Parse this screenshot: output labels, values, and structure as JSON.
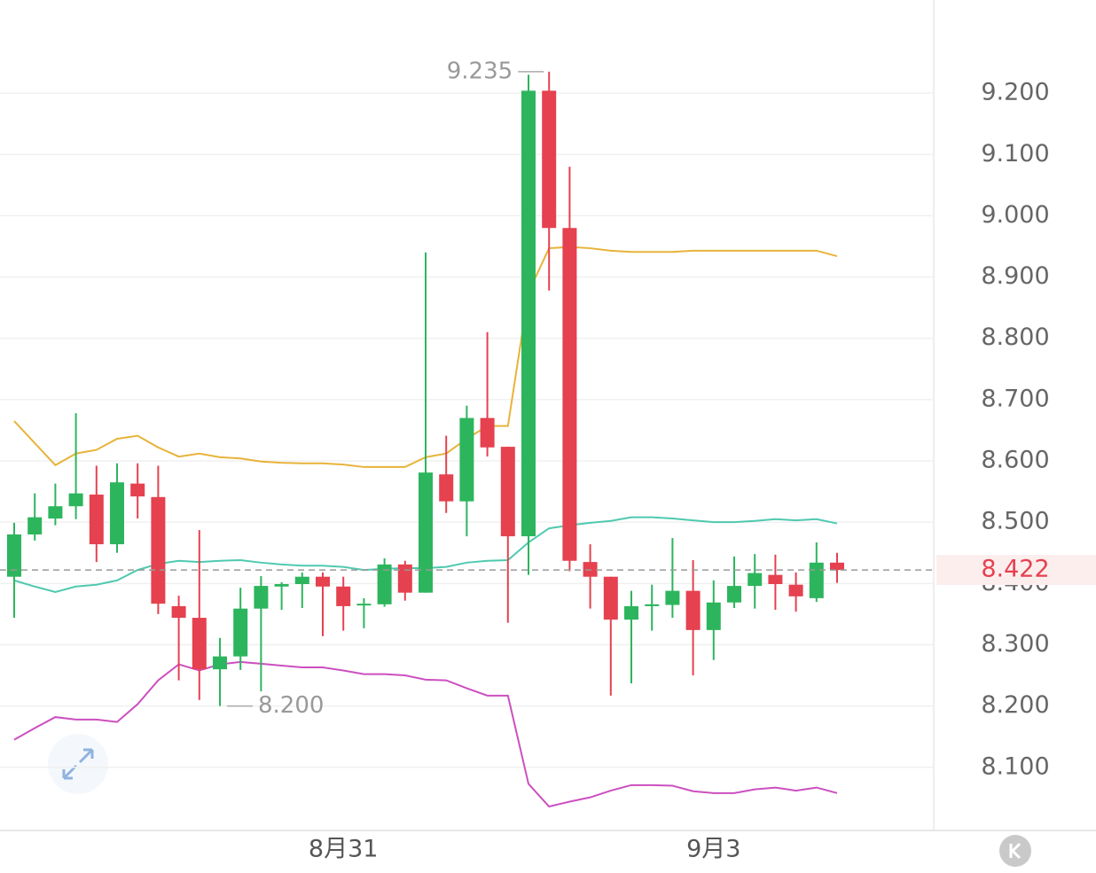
{
  "chart_data": {
    "type": "candlestick",
    "categories": [
      null,
      null,
      null,
      null,
      null,
      null,
      null,
      null,
      null,
      null,
      null,
      null,
      null,
      null,
      null,
      null,
      "8月31",
      null,
      null,
      null,
      null,
      null,
      null,
      null,
      null,
      null,
      null,
      null,
      null,
      null,
      null,
      null,
      null,
      null,
      "9月3",
      null,
      null,
      null,
      null,
      null,
      null
    ],
    "open": [
      8.411,
      8.48,
      8.506,
      8.526,
      8.545,
      8.464,
      8.563,
      8.541,
      8.363,
      8.344,
      8.26,
      8.281,
      8.359,
      8.395,
      8.399,
      8.411,
      8.395,
      8.365,
      8.366,
      8.431,
      8.385,
      8.578,
      8.534,
      8.67,
      8.623,
      8.477,
      9.204,
      8.98,
      8.435,
      8.411,
      8.341,
      8.363,
      8.365,
      8.388,
      8.324,
      8.369,
      8.396,
      8.414,
      8.398,
      8.376,
      8.434
    ],
    "high": [
      8.499,
      8.547,
      8.563,
      8.678,
      8.592,
      8.596,
      8.596,
      8.592,
      8.38,
      8.487,
      8.311,
      8.393,
      8.412,
      8.402,
      8.418,
      8.418,
      8.411,
      8.376,
      8.441,
      8.437,
      8.94,
      8.641,
      8.69,
      8.81,
      8.623,
      9.23,
      9.235,
      9.08,
      8.464,
      8.411,
      8.388,
      8.398,
      8.474,
      8.438,
      8.405,
      8.444,
      8.448,
      8.447,
      8.418,
      8.467,
      8.45
    ],
    "low": [
      8.344,
      8.47,
      8.495,
      8.505,
      8.435,
      8.45,
      8.506,
      8.35,
      8.242,
      8.21,
      8.2,
      8.259,
      8.224,
      8.357,
      8.36,
      8.314,
      8.323,
      8.327,
      8.362,
      8.372,
      8.385,
      8.515,
      8.477,
      8.607,
      8.336,
      8.414,
      8.878,
      8.42,
      8.359,
      8.217,
      8.237,
      8.323,
      8.344,
      8.25,
      8.275,
      8.36,
      8.359,
      8.357,
      8.354,
      8.37,
      8.401
    ],
    "close": [
      8.48,
      8.508,
      8.526,
      8.547,
      8.464,
      8.565,
      8.542,
      8.367,
      8.344,
      8.26,
      8.281,
      8.359,
      8.396,
      8.399,
      8.411,
      8.395,
      8.363,
      8.367,
      8.431,
      8.385,
      8.581,
      8.534,
      8.67,
      8.622,
      8.477,
      9.204,
      8.98,
      8.437,
      8.411,
      8.341,
      8.363,
      8.366,
      8.388,
      8.324,
      8.369,
      8.396,
      8.417,
      8.399,
      8.379,
      8.434,
      8.422
    ],
    "up_color": "#2db55d",
    "down_color": "#e5414f",
    "lines": [
      {
        "color": "#e8b33a",
        "values": [
          8.665,
          8.629,
          8.593,
          8.612,
          8.618,
          8.636,
          8.641,
          8.622,
          8.607,
          8.612,
          8.606,
          8.604,
          8.599,
          8.597,
          8.596,
          8.596,
          8.594,
          8.59,
          8.59,
          8.59,
          8.606,
          8.612,
          8.636,
          8.657,
          8.657,
          8.875,
          8.947,
          8.949,
          8.947,
          8.943,
          8.941,
          8.941,
          8.941,
          8.943,
          8.943,
          8.943,
          8.943,
          8.943,
          8.943,
          8.943,
          8.934
        ]
      },
      {
        "color": "#4fc9b0",
        "values": [
          8.405,
          8.395,
          8.386,
          8.395,
          8.398,
          8.405,
          8.422,
          8.432,
          8.437,
          8.435,
          8.437,
          8.438,
          8.434,
          8.431,
          8.429,
          8.429,
          8.427,
          8.422,
          8.424,
          8.425,
          8.425,
          8.427,
          8.434,
          8.437,
          8.438,
          8.467,
          8.49,
          8.495,
          8.499,
          8.502,
          8.508,
          8.508,
          8.506,
          8.503,
          8.5,
          8.5,
          8.502,
          8.505,
          8.503,
          8.505,
          8.498
        ]
      },
      {
        "color": "#cc4fc0",
        "values": [
          8.145,
          8.164,
          8.182,
          8.178,
          8.178,
          8.174,
          8.203,
          8.242,
          8.268,
          8.258,
          8.268,
          8.272,
          8.269,
          8.266,
          8.263,
          8.263,
          8.258,
          8.252,
          8.252,
          8.25,
          8.243,
          8.242,
          8.229,
          8.217,
          8.217,
          8.073,
          8.036,
          8.044,
          8.051,
          8.062,
          8.071,
          8.071,
          8.07,
          8.061,
          8.058,
          8.058,
          8.064,
          8.067,
          8.062,
          8.067,
          8.058
        ]
      }
    ],
    "ylim": [
      7.997,
      9.352
    ],
    "yticks": [
      {
        "value": 8.1,
        "label": "8.100"
      },
      {
        "value": 8.2,
        "label": "8.200"
      },
      {
        "value": 8.3,
        "label": "8.300"
      },
      {
        "value": 8.4,
        "label": "8.400"
      },
      {
        "value": 8.5,
        "label": "8.500"
      },
      {
        "value": 8.6,
        "label": "8.600"
      },
      {
        "value": 8.7,
        "label": "8.700"
      },
      {
        "value": 8.8,
        "label": "8.800"
      },
      {
        "value": 8.9,
        "label": "8.900"
      },
      {
        "value": 9.0,
        "label": "9.000"
      },
      {
        "value": 9.1,
        "label": "9.100"
      },
      {
        "value": 9.2,
        "label": "9.200"
      }
    ],
    "grid": true,
    "last_price": 8.422,
    "last_price_color": "#e5414f",
    "annotations": [
      {
        "value": 9.235,
        "label": "9.235"
      },
      {
        "value": 8.2,
        "label": "8.200"
      }
    ]
  }
}
